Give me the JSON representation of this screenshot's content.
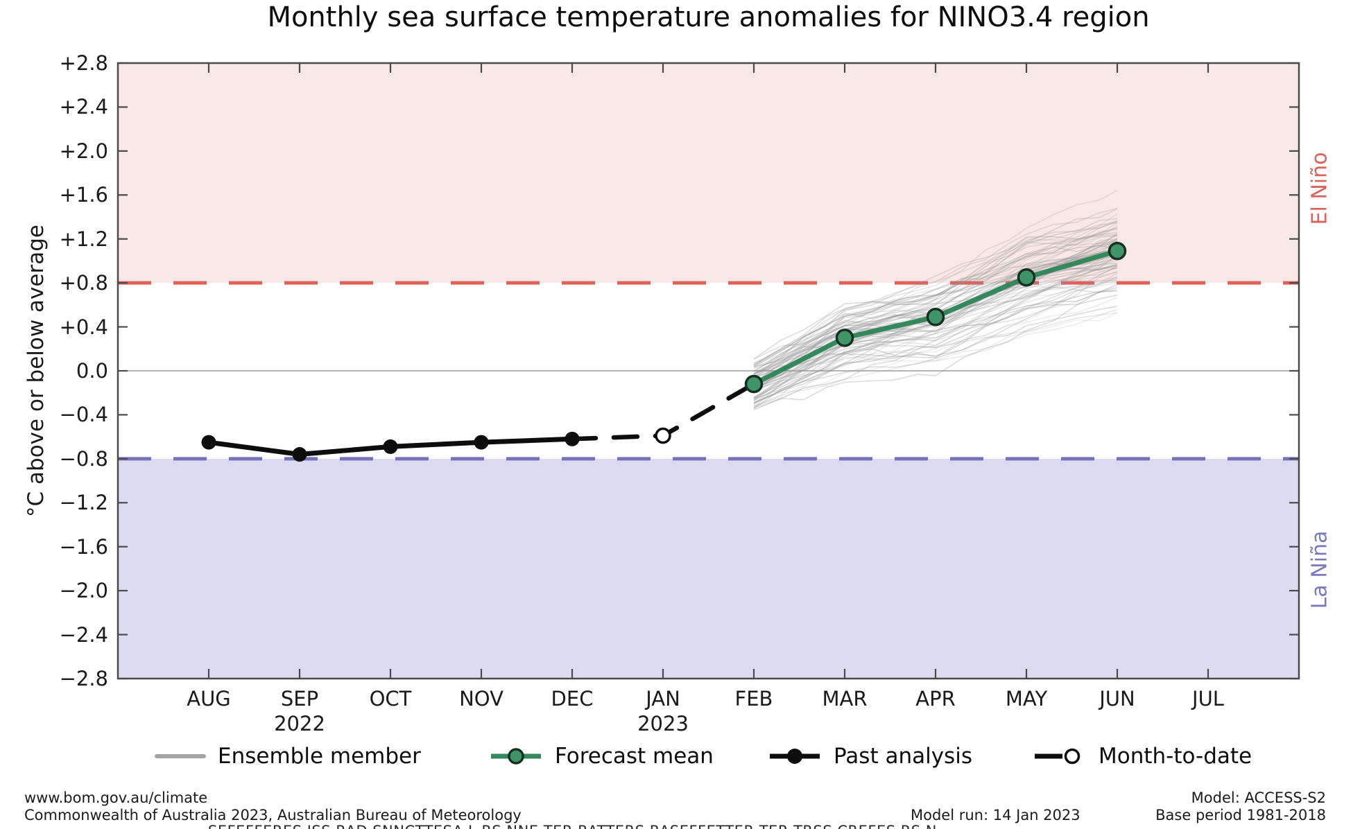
{
  "title": "Monthly sea surface temperature anomalies for NINO3.4 region",
  "axes": {
    "ylabel": "°C above or below average",
    "months": [
      "AUG",
      "SEP",
      "OCT",
      "NOV",
      "DEC",
      "JAN",
      "FEB",
      "MAR",
      "APR",
      "MAY",
      "JUN",
      "JUL"
    ],
    "year_labels": [
      {
        "month_index": 1,
        "label": "2022"
      },
      {
        "month_index": 5,
        "label": "2023"
      }
    ]
  },
  "region_labels": {
    "el_nino": "El Niño",
    "la_nina": "La Niña"
  },
  "legend": {
    "items": [
      {
        "label": "Ensemble member",
        "type": "ensemble-line"
      },
      {
        "label": "Forecast mean",
        "type": "green-line-dot"
      },
      {
        "label": "Past analysis",
        "type": "black-line-dot"
      },
      {
        "label": "Month-to-date",
        "type": "black-line-open-dot"
      }
    ]
  },
  "footer": {
    "website": "www.bom.gov.au/climate",
    "copyright": "Commonwealth of Australia 2023, Australian Bureau of Meteorology",
    "model": "Model: ACCESS-S2",
    "model_run": "Model run: 14 Jan 2023",
    "base_period": "Base period 1981-2018",
    "clipped_line": "SEFEFFERES JSS RAD SNNCTTESA L RS NNE TER RATTERS RASEFFETTER TER TRSS CREFES RS N"
  },
  "colors": {
    "pink_band": "#f8e8e7",
    "lavender_band": "#dcdbf1",
    "red_dashed": "#e2605c",
    "blue_dashed": "#7472b8",
    "zero_line": "#b5b5b5",
    "spine": "#4a4a4a",
    "forecast_green": "#35885c",
    "forecast_marker_fill": "#3f9569",
    "forecast_marker_edge": "#16301f",
    "past_black": "#0d0d0d",
    "ensemble_gray": "#8f8f8f",
    "el_nino_text": "#d9635c",
    "la_nina_text": "#7b79bd"
  },
  "chart_data": {
    "type": "line",
    "title": "Monthly sea surface temperature anomalies for NINO3.4 region",
    "xlabel": "",
    "ylabel": "°C above or below average",
    "ylim": [
      -2.8,
      2.8
    ],
    "ytick_step": 0.4,
    "categories": [
      "AUG",
      "SEP",
      "OCT",
      "NOV",
      "DEC",
      "JAN",
      "FEB",
      "MAR",
      "APR",
      "MAY",
      "JUN",
      "JUL"
    ],
    "grid": "zero line only",
    "legend_position": "bottom",
    "thresholds": {
      "el_nino": 0.8,
      "la_nina": -0.8
    },
    "series": [
      {
        "name": "Past analysis",
        "months": [
          "AUG",
          "SEP",
          "OCT",
          "NOV",
          "DEC"
        ],
        "values": [
          -0.65,
          -0.76,
          -0.69,
          -0.65,
          -0.62
        ]
      },
      {
        "name": "Month-to-date",
        "months": [
          "JAN"
        ],
        "values": [
          -0.59
        ],
        "connector_months": [
          "DEC",
          "JAN",
          "FEB"
        ],
        "connector_values": [
          -0.62,
          -0.59,
          -0.12
        ]
      },
      {
        "name": "Forecast mean",
        "months": [
          "FEB",
          "MAR",
          "APR",
          "MAY",
          "JUN"
        ],
        "values": [
          -0.12,
          0.3,
          0.49,
          0.85,
          1.09
        ]
      }
    ],
    "ensemble": {
      "name": "Ensemble member",
      "months": [
        "FEB",
        "MAR",
        "APR",
        "MAY",
        "JUN"
      ],
      "count": 78,
      "seed": 12,
      "mean_values": [
        -0.12,
        0.3,
        0.49,
        0.85,
        1.09
      ],
      "start_spread": 0.17,
      "step_noise": 0.27,
      "sub_noise": 0.05,
      "clamp": [
        -0.58,
        1.74
      ],
      "approx_range_at_end": [
        0.45,
        1.6
      ]
    }
  }
}
